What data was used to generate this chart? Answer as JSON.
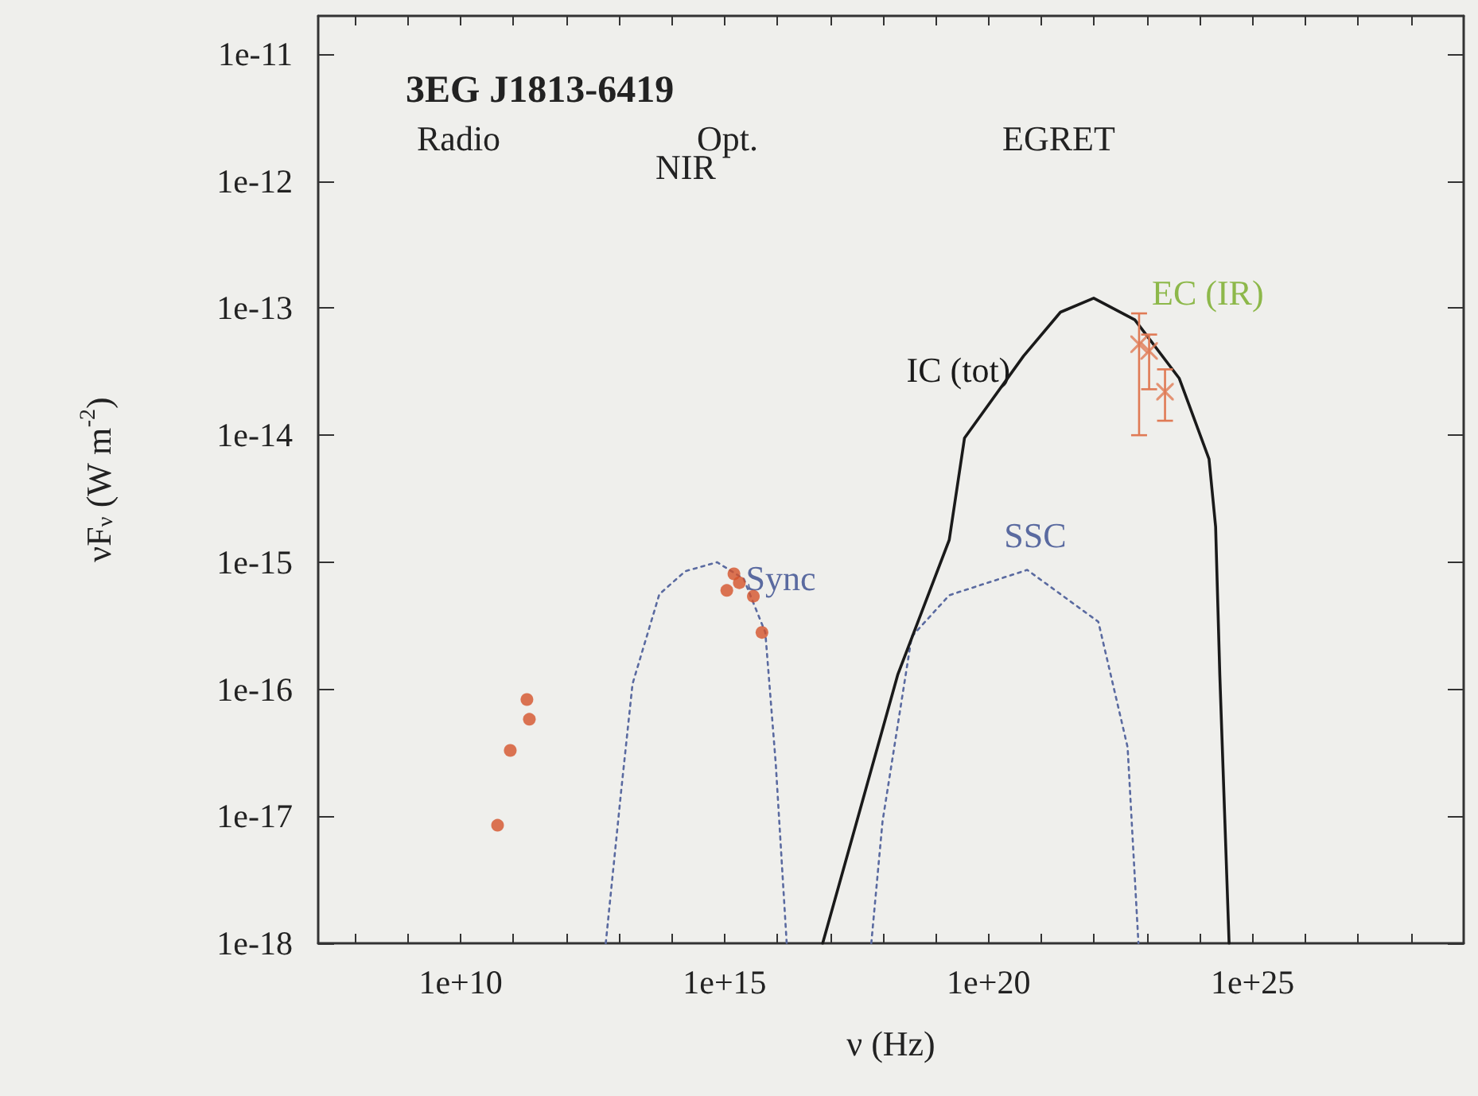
{
  "chart_data": {
    "type": "line",
    "title": "3EG J1813-6419",
    "xlabel": "ν (Hz)",
    "ylabel": "νF$_{ν}$ (W m$^{-2}$)",
    "log": "xy",
    "grid": false,
    "legend": false,
    "xlim": [
      20000000.0,
      1e+29
    ],
    "ylim": [
      1e-18,
      2e-11
    ],
    "xticks": [
      {
        "value": 100000000.0,
        "label": null
      },
      {
        "value": 1000000000.0,
        "label": null
      },
      {
        "value": 10000000000.0,
        "label": "1e+10"
      },
      {
        "value": 100000000000.0,
        "label": null
      },
      {
        "value": 1000000000000.0,
        "label": null
      },
      {
        "value": 10000000000000.0,
        "label": null
      },
      {
        "value": 100000000000000.0,
        "label": null
      },
      {
        "value": 1000000000000000.0,
        "label": "1e+15"
      },
      {
        "value": 1e+16,
        "label": null
      },
      {
        "value": 1e+17,
        "label": null
      },
      {
        "value": 1e+18,
        "label": null
      },
      {
        "value": 1e+19,
        "label": null
      },
      {
        "value": 1e+20,
        "label": "1e+20"
      },
      {
        "value": 1e+21,
        "label": null
      },
      {
        "value": 1e+22,
        "label": null
      },
      {
        "value": 1e+23,
        "label": null
      },
      {
        "value": 1e+24,
        "label": null
      },
      {
        "value": 1e+25,
        "label": "1e+25"
      },
      {
        "value": 1e+26,
        "label": null
      },
      {
        "value": 1e+27,
        "label": null
      },
      {
        "value": 1e+28,
        "label": null
      }
    ],
    "yticks": [
      {
        "value": 1e-18,
        "label": "1e-18"
      },
      {
        "value": 1e-17,
        "label": "1e-17"
      },
      {
        "value": 1e-16,
        "label": "1e-16"
      },
      {
        "value": 1e-15,
        "label": "1e-15"
      },
      {
        "value": 1e-14,
        "label": "1e-14"
      },
      {
        "value": 1e-13,
        "label": "1e-13"
      },
      {
        "value": 1e-12,
        "label": "1e-12"
      },
      {
        "value": 1e-11,
        "label": "1e-11"
      }
    ],
    "annotations": [
      "Radio",
      "Opt.",
      "NIR",
      "EGRET",
      "EC (IR)"
    ],
    "series": [
      {
        "name": "Sync",
        "color": "#5a6aa0",
        "line_style": "dotted",
        "marker": "none",
        "x": [
          5600000000000.0,
          11000000000000.0,
          18000000000000.0,
          58000000000000.0,
          180000000000000.0,
          720000000000000.0,
          2300000000000000.0,
          5900000000000000.0,
          9300000000000000.0,
          1.5e+16
        ],
        "values": [
          1e-18,
          1.6e-17,
          1.1e-16,
          5.6e-16,
          8.5e-16,
          1e-15,
          7.4e-16,
          2.8e-16,
          2.6e-17,
          1e-18
        ]
      },
      {
        "name": "SSC",
        "color": "#5a6aa0",
        "line_style": "dotted",
        "marker": "none",
        "x": [
          6e+17,
          9.8e+17,
          3.5e+18,
          1.8e+19,
          5.4e+20,
          1.2e+22,
          4.3e+22,
          6.9e+22
        ],
        "values": [
          1e-18,
          9.1e-18,
          2.6e-16,
          5.5e-16,
          8.7e-16,
          3.4e-16,
          3.5e-17,
          1e-18
        ]
      },
      {
        "name": "IC (tot)",
        "color": "#1a1a1a",
        "line_style": "solid",
        "marker": "none",
        "x": [
          7.2e+16,
          2.7e+17,
          1.9e+18,
          1.8e+19,
          3.5e+19,
          4.6e+20,
          2.3e+21,
          9.8e+21,
          5.9e+22,
          4.1e+23,
          1.5e+24,
          2e+24,
          2.4e+24,
          3.6e+24
        ],
        "values": [
          1e-18,
          7.1e-18,
          1.3e-16,
          1.5e-15,
          9.5e-15,
          4.2e-14,
          9.3e-14,
          1.2e-13,
          8.1e-14,
          2.8e-14,
          6.5e-15,
          1.9e-15,
          1.3e-16,
          1e-18
        ]
      },
      {
        "type": "scatter",
        "color": "#d4522a",
        "marker": "circle",
        "x": [
          50000000000.0,
          87000000000.0,
          200000000000.0,
          180000000000.0,
          1100000000000000.0,
          1500000000000000.0,
          1900000000000000.0,
          3500000000000000.0,
          5100000000000000.0
        ],
        "values": [
          8.5e-18,
          3.3e-17,
          5.8e-17,
          8.3e-17,
          6e-16,
          8.1e-16,
          6.9e-16,
          5.4e-16,
          2.8e-16
        ]
      },
      {
        "type": "scatter",
        "color": "#e07a55",
        "marker": "cross",
        "x": [
          7.1e+22,
          1.1e+23,
          2.2e+23
        ],
        "values": [
          5.2e-14,
          4.6e-14,
          2.2e-14
        ],
        "errors": [
          [
            1e-14,
            9.1e-14
          ],
          [
            2.3e-14,
            6.2e-14
          ],
          [
            1.3e-14,
            3.3e-14
          ]
        ]
      }
    ]
  }
}
